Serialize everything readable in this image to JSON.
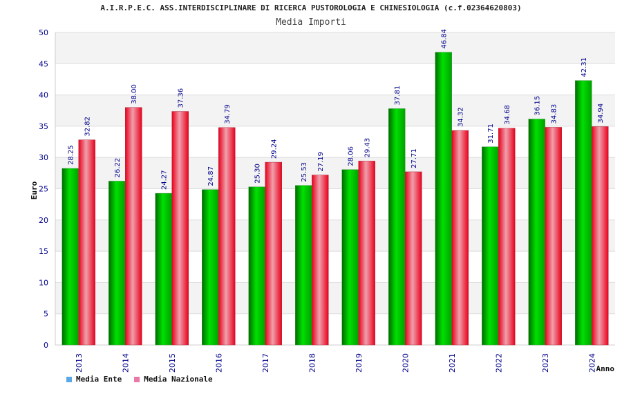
{
  "header": {
    "title": "A.I.R.P.E.C. ASS.INTERDISCIPLINARE DI RICERCA PUSTOROLOGIA E CHINESIOLOGIA (c.f.02364620803)",
    "subtitle": "Media Importi"
  },
  "chart_data": {
    "type": "bar",
    "title": "Media Importi",
    "xlabel": "Anno",
    "ylabel": "Euro",
    "ylim": [
      0,
      50
    ],
    "yticks": [
      0,
      5,
      10,
      15,
      20,
      25,
      30,
      35,
      40,
      45,
      50
    ],
    "grid": true,
    "legend_position": "bottom-left",
    "categories": [
      "2013",
      "2014",
      "2015",
      "2016",
      "2017",
      "2018",
      "2019",
      "2020",
      "2021",
      "2022",
      "2023",
      "2024"
    ],
    "series": [
      {
        "name": "Media Ente",
        "color": "#00b400",
        "legend_color": "#5aa9e6",
        "values": [
          28.25,
          26.22,
          24.27,
          24.87,
          25.3,
          25.53,
          28.06,
          37.81,
          46.84,
          31.71,
          36.15,
          42.31
        ],
        "labels": [
          "28.25",
          "26.22",
          "24.27",
          "24.87",
          "25.30",
          "25.53",
          "28.06",
          "37.81",
          "46.84",
          "31.71",
          "36.15",
          "42.31"
        ]
      },
      {
        "name": "Media Nazionale",
        "color": "#e8001c",
        "legend_color": "#e87aa8",
        "values": [
          32.82,
          38.0,
          37.36,
          34.79,
          29.24,
          27.19,
          29.43,
          27.71,
          34.32,
          34.68,
          34.83,
          34.94
        ],
        "labels": [
          "32.82",
          "38.00",
          "37.36",
          "34.79",
          "29.24",
          "27.19",
          "29.43",
          "27.71",
          "34.32",
          "34.68",
          "34.83",
          "34.94"
        ]
      }
    ]
  }
}
